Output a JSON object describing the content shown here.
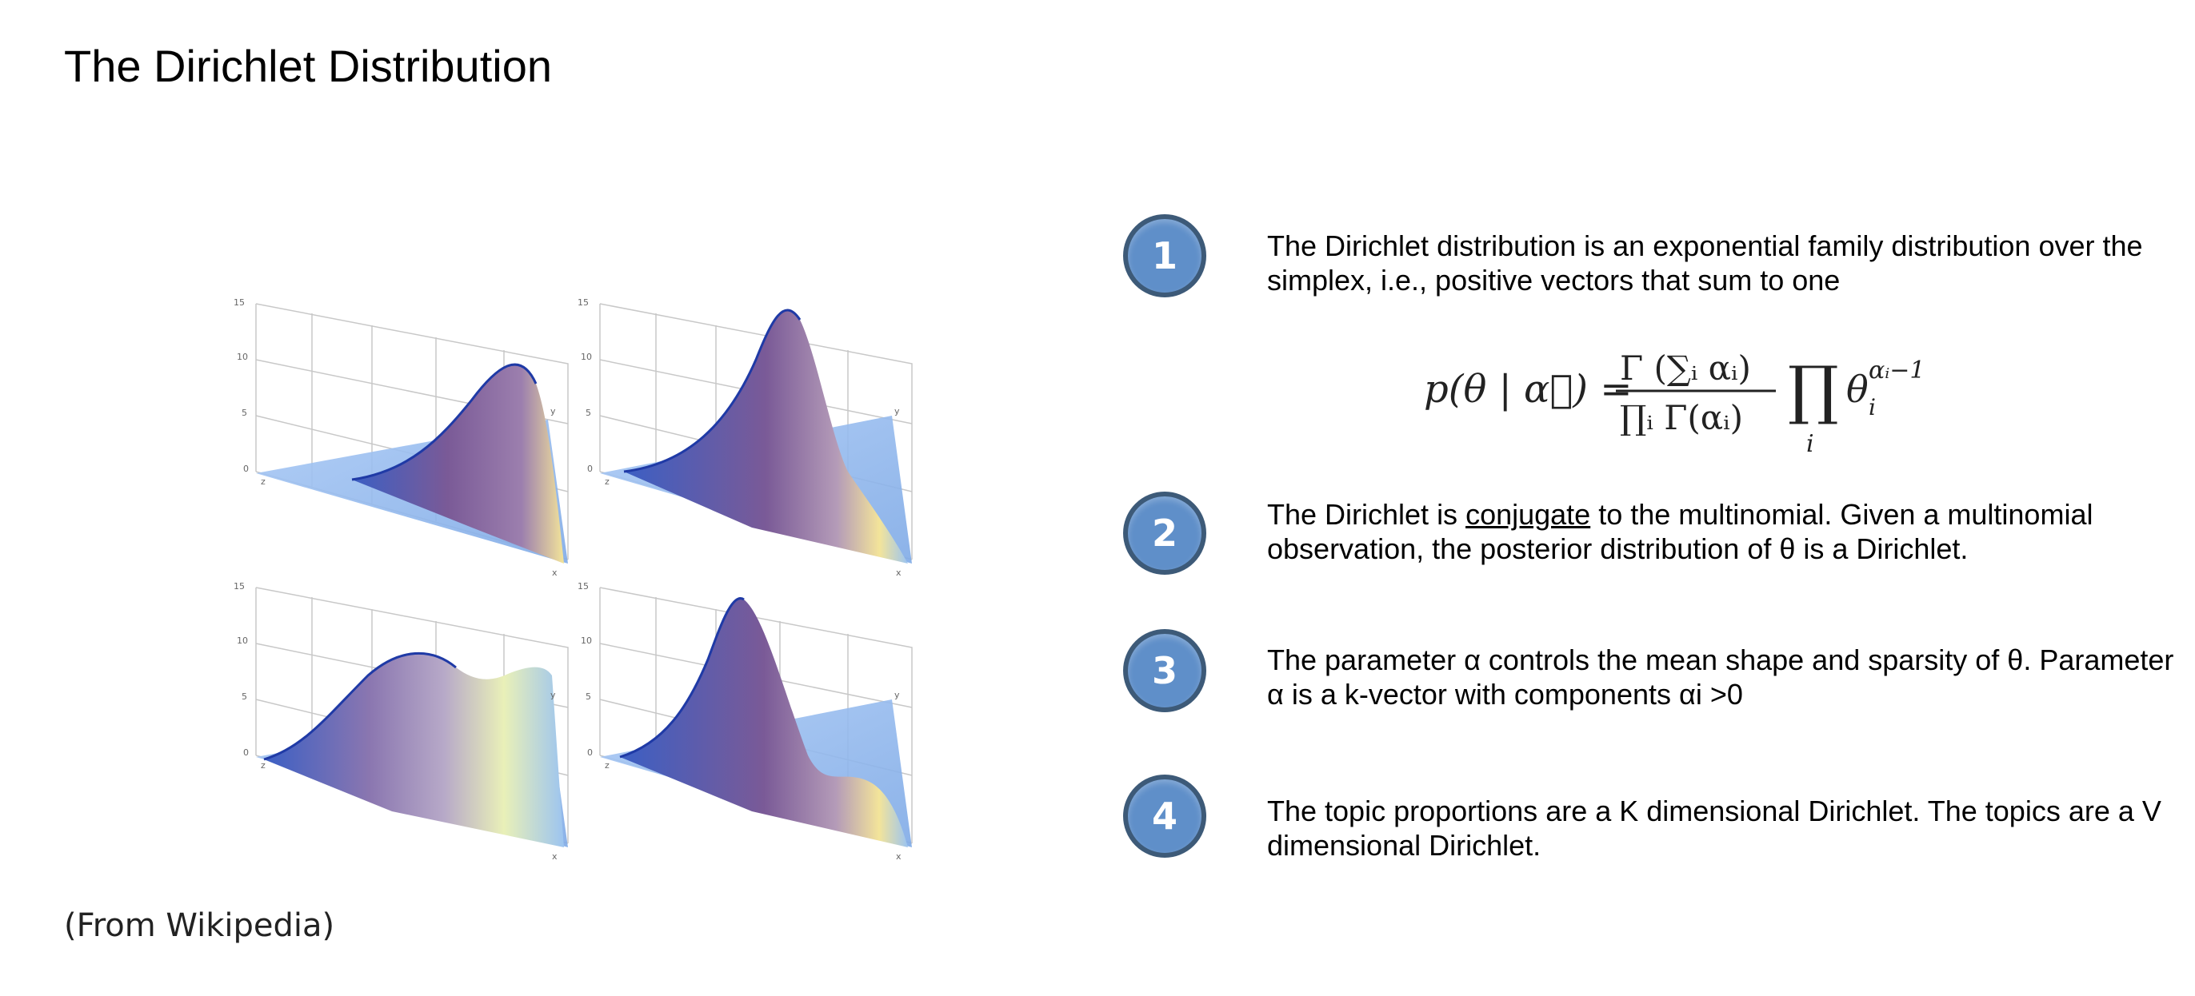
{
  "slide": {
    "title": "The Dirichlet Distribution",
    "caption": "(From Wikipedia)"
  },
  "plots": {
    "tick_labels": [
      "15",
      "10",
      "5",
      "0"
    ],
    "axis_labels": {
      "x": "x",
      "y": "y",
      "z": "z"
    }
  },
  "items": [
    {
      "number": "1",
      "text": "The Dirichlet distribution is an exponential family distribution over the simplex, i.e., positive vectors that sum to one"
    },
    {
      "number": "2",
      "text_before": "The Dirichlet is ",
      "text_link": "conjugate",
      "text_after": " to the multinomial. Given a multinomial observation, the posterior distribution of θ is a Dirichlet."
    },
    {
      "number": "3",
      "text": "The parameter α controls the mean shape and sparsity of θ. Parameter α is a k-vector with components αi >0"
    },
    {
      "number": "4",
      "text": "The topic proportions are a K dimensional Dirichlet. The topics are a V dimensional Dirichlet."
    }
  ],
  "formula": {
    "lhs": "p(θ | α⃗) =",
    "numerator": "Γ (∑ᵢ αᵢ)",
    "denominator": "∏ᵢ Γ(αᵢ)",
    "product": "∏",
    "product_index": "i",
    "theta": "θ",
    "exponent": "αᵢ−1",
    "subscript": "i"
  },
  "colors": {
    "circle_fill": "#5f8fc9",
    "circle_border": "#3d5a78",
    "surface_purple": "#7a5a97",
    "surface_blue": "#8fb8ee",
    "surface_yellow": "#f3e49a"
  }
}
